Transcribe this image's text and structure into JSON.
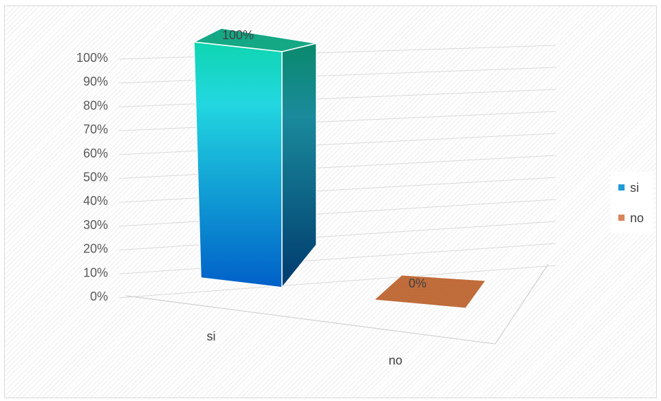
{
  "chart_data": {
    "type": "bar",
    "categories": [
      "si",
      "no"
    ],
    "values": [
      100,
      0
    ],
    "value_labels": [
      "100%",
      "0%"
    ],
    "ylim": [
      0,
      100
    ],
    "yticks": [
      "0%",
      "10%",
      "20%",
      "30%",
      "40%",
      "50%",
      "60%",
      "70%",
      "80%",
      "90%",
      "100%"
    ],
    "grid": true,
    "legend": {
      "position": "right",
      "entries": [
        {
          "label": "si",
          "color": "#1f9bd6"
        },
        {
          "label": "no",
          "color": "#d9845a"
        }
      ]
    },
    "colors": {
      "si_front_top": "#0fd6b0",
      "si_front_mid": "#22d7e0",
      "si_front_bottom": "#0060c8",
      "si_side_top": "#0a8a6c",
      "si_side_bottom": "#003a6e",
      "si_cap": "#14a885",
      "no_cap": "#c5703f"
    }
  }
}
